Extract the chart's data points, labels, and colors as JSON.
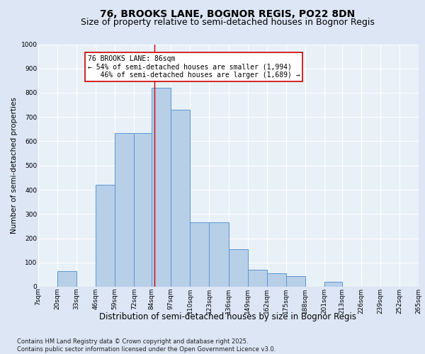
{
  "title1": "76, BROOKS LANE, BOGNOR REGIS, PO22 8DN",
  "title2": "Size of property relative to semi-detached houses in Bognor Regis",
  "xlabel": "Distribution of semi-detached houses by size in Bognor Regis",
  "ylabel": "Number of semi-detached properties",
  "footnote": "Contains HM Land Registry data © Crown copyright and database right 2025.\nContains public sector information licensed under the Open Government Licence v3.0.",
  "bar_edges": [
    7,
    20,
    33,
    46,
    59,
    72,
    84,
    97,
    110,
    123,
    136,
    149,
    162,
    175,
    188,
    201,
    213,
    226,
    239,
    252,
    265
  ],
  "bar_heights": [
    0,
    65,
    0,
    420,
    635,
    635,
    820,
    730,
    265,
    265,
    155,
    70,
    55,
    45,
    0,
    20,
    0,
    0,
    0,
    0
  ],
  "tick_labels": [
    "7sqm",
    "20sqm",
    "33sqm",
    "46sqm",
    "59sqm",
    "72sqm",
    "84sqm",
    "97sqm",
    "110sqm",
    "123sqm",
    "136sqm",
    "149sqm",
    "162sqm",
    "175sqm",
    "188sqm",
    "201sqm",
    "213sqm",
    "226sqm",
    "239sqm",
    "252sqm",
    "265sqm"
  ],
  "bar_color": "#b8cfe8",
  "bar_edge_color": "#5b96d2",
  "background_color": "#dce6f5",
  "plot_bg_color": "#e8f0f8",
  "grid_color": "#ffffff",
  "vline_x": 86,
  "vline_color": "#cc0000",
  "ylim": [
    0,
    1000
  ],
  "yticks": [
    0,
    100,
    200,
    300,
    400,
    500,
    600,
    700,
    800,
    900,
    1000
  ],
  "annotation_text": "76 BROOKS LANE: 86sqm\n← 54% of semi-detached houses are smaller (1,994)\n   46% of semi-detached houses are larger (1,689) →",
  "ann_box_color": "#ffffff",
  "ann_box_edge": "#cc0000",
  "title1_fontsize": 10,
  "title2_fontsize": 9,
  "xlabel_fontsize": 8.5,
  "ylabel_fontsize": 7.5,
  "tick_fontsize": 6.5,
  "ann_fontsize": 7.0,
  "footnote_fontsize": 6.0
}
